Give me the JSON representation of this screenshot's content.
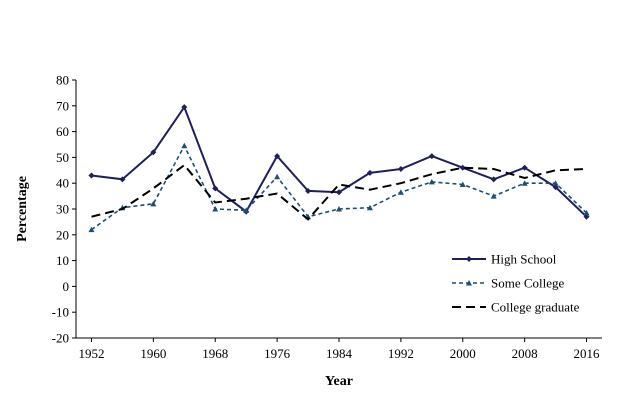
{
  "chart_data": {
    "type": "line",
    "title": "",
    "xlabel": "Year",
    "ylabel": "Percentage",
    "xlim": [
      1950,
      2018
    ],
    "ylim": [
      -20,
      80
    ],
    "x_ticks": [
      1952,
      1960,
      1968,
      1976,
      1984,
      1992,
      2000,
      2008,
      2016
    ],
    "y_ticks": [
      -20,
      -10,
      0,
      10,
      20,
      30,
      40,
      50,
      60,
      70,
      80
    ],
    "grid": false,
    "legend_position": "bottom-right",
    "x": [
      1952,
      1956,
      1960,
      1964,
      1968,
      1972,
      1976,
      1980,
      1984,
      1988,
      1992,
      1996,
      2000,
      2004,
      2008,
      2012,
      2016
    ],
    "series": [
      {
        "name": "High School",
        "color": "#1f1f5c",
        "style": "solid",
        "marker": "diamond",
        "values": [
          43,
          41.5,
          52,
          69.5,
          38,
          29,
          50.5,
          37,
          36.5,
          44,
          45.5,
          50.5,
          46,
          41.5,
          46,
          38.5,
          27
        ]
      },
      {
        "name": "Some College",
        "color": "#1f4e6e",
        "style": "dashed",
        "marker": "triangle",
        "values": [
          22,
          30.5,
          32,
          54.5,
          30,
          29.5,
          42.5,
          27,
          30,
          30.5,
          36.5,
          40.5,
          39.5,
          35,
          40,
          40,
          28.5
        ]
      },
      {
        "name": "College graduate",
        "color": "#000000",
        "style": "longdash",
        "marker": "none",
        "values": [
          27,
          30,
          38,
          47,
          32.5,
          34,
          36,
          26,
          39.5,
          37.5,
          40,
          43.5,
          46,
          45.5,
          42,
          45,
          45.5
        ]
      }
    ]
  }
}
